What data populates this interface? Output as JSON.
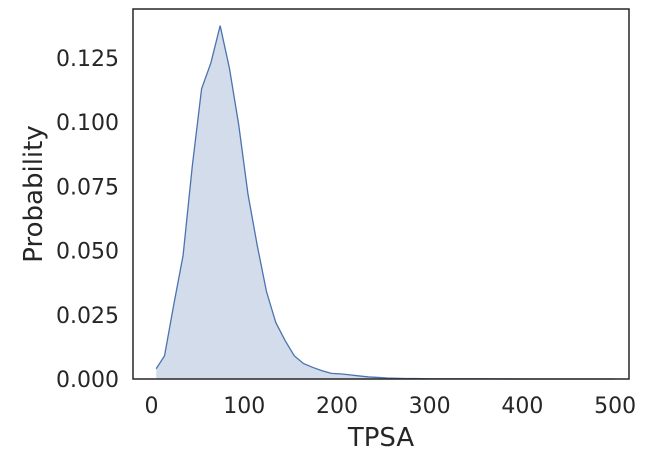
{
  "chart_data": {
    "type": "area",
    "xlabel": "TPSA",
    "ylabel": "Probability",
    "xlim": [
      -20,
      515
    ],
    "ylim": [
      0,
      0.144
    ],
    "xticks": [
      0,
      100,
      200,
      300,
      400,
      500
    ],
    "yticks": [
      0.0,
      0.025,
      0.05,
      0.075,
      0.1,
      0.125
    ],
    "ytick_labels": [
      "0.000",
      "0.025",
      "0.050",
      "0.075",
      "0.100",
      "0.125"
    ],
    "grid": false,
    "colors": {
      "line": "#4c72b0",
      "fill": "#4c72b0",
      "frame": "#262626"
    },
    "series": [
      {
        "x": [
          5,
          14,
          24,
          34,
          44,
          54,
          64,
          74,
          84,
          94,
          104,
          114,
          124,
          134,
          144,
          154,
          164,
          174,
          184,
          194,
          204,
          214,
          224,
          234,
          244,
          254,
          264,
          274,
          284,
          300,
          350,
          400,
          450,
          500
        ],
        "y": [
          0.004,
          0.009,
          0.029,
          0.048,
          0.083,
          0.113,
          0.123,
          0.1375,
          0.121,
          0.099,
          0.072,
          0.052,
          0.034,
          0.022,
          0.015,
          0.009,
          0.006,
          0.0045,
          0.0032,
          0.0022,
          0.002,
          0.0016,
          0.0012,
          0.0008,
          0.0006,
          0.0004,
          0.0003,
          0.0002,
          0.0002,
          0.0001,
          0.0001,
          0.0,
          0.0,
          0.0
        ]
      }
    ]
  }
}
